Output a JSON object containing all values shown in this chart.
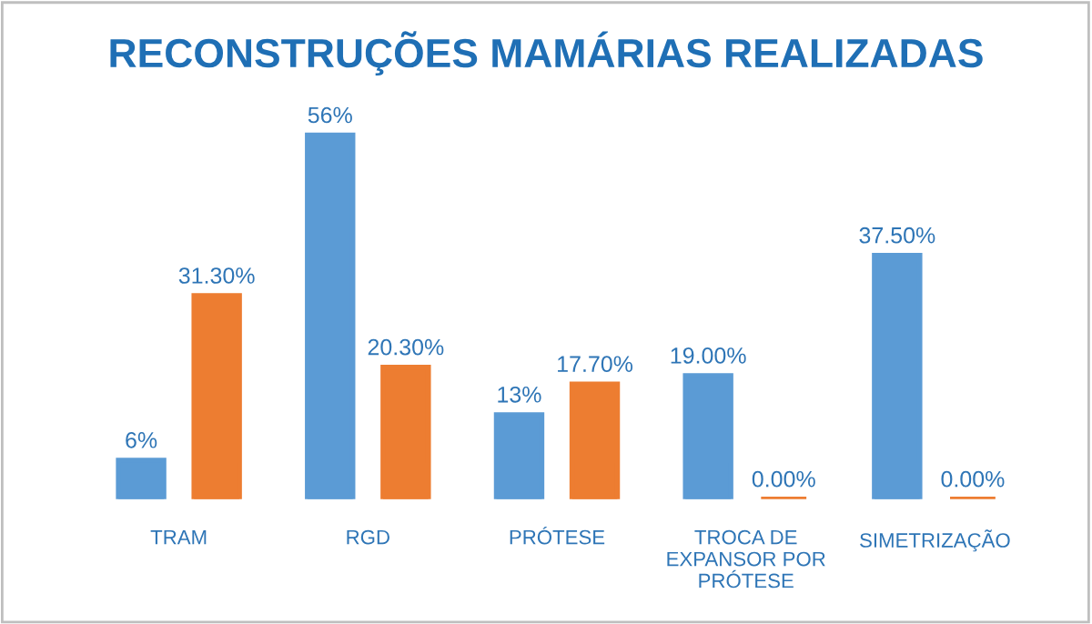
{
  "chart_data": {
    "type": "bar",
    "title": "RECONSTRUÇÕES MAMÁRIAS REALIZADAS",
    "categories": [
      "TRAM",
      "RGD",
      "PRÓTESE",
      "TROCA DE\nEXPANSOR POR\nPRÓTESE",
      "SIMETRIZAÇÃO"
    ],
    "series": [
      {
        "color": "#5b9bd5",
        "values": [
          6,
          56,
          13,
          19,
          37.5
        ],
        "value_labels": [
          "6%",
          "56%",
          "13%",
          "19.00%",
          "37.50%"
        ]
      },
      {
        "color": "#ed7d31",
        "values": [
          31.3,
          20.3,
          17.7,
          0,
          0
        ],
        "value_labels": [
          "31.30%",
          "20.30%",
          "17.70%",
          "0.00%",
          "0.00%"
        ]
      }
    ],
    "grid": false,
    "legend": false
  }
}
